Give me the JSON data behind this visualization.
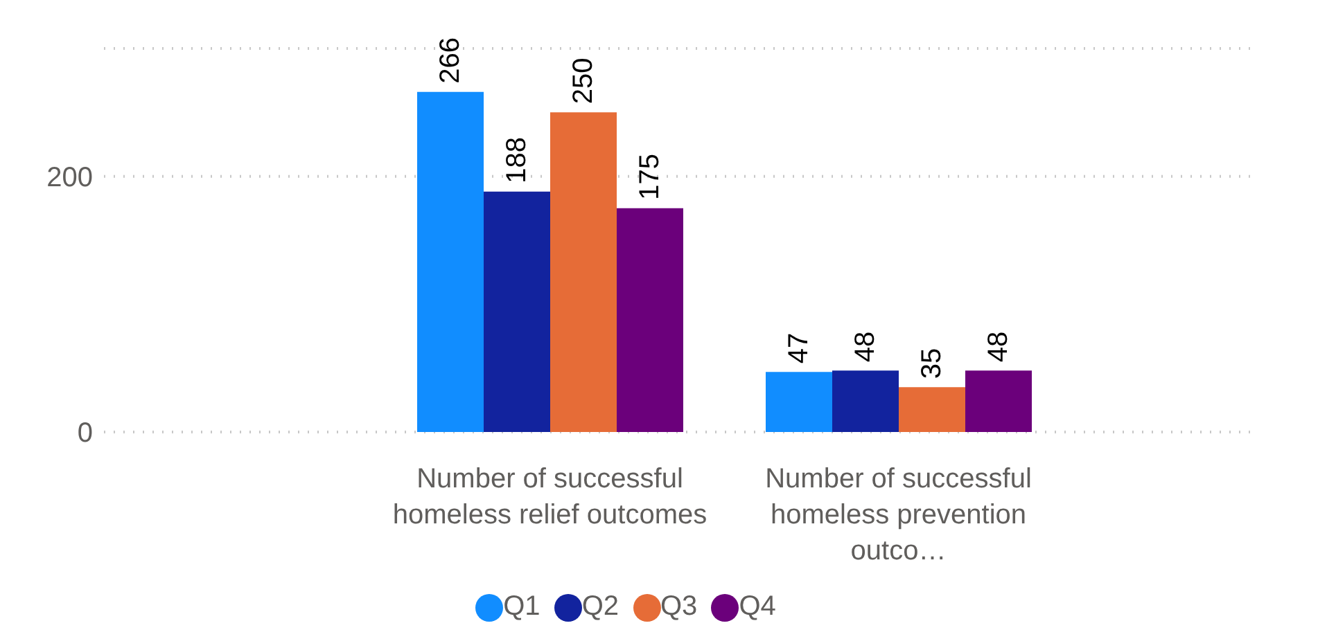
{
  "chart_data": {
    "type": "bar",
    "categories": [
      "Number of successful homeless relief outcomes",
      "Number of successful homeless prevention outco…"
    ],
    "series": [
      {
        "name": "Q1",
        "color": "#118dff",
        "values": [
          266,
          47
        ]
      },
      {
        "name": "Q2",
        "color": "#12239e",
        "values": [
          188,
          48
        ]
      },
      {
        "name": "Q3",
        "color": "#e66c37",
        "values": [
          250,
          35
        ]
      },
      {
        "name": "Q4",
        "color": "#6b007b",
        "values": [
          175,
          48
        ]
      }
    ],
    "ylim": [
      0,
      300
    ],
    "yticks": [
      0,
      200
    ],
    "grid": "y",
    "legend": "bottom",
    "data_labels": true,
    "marker": "circle"
  }
}
